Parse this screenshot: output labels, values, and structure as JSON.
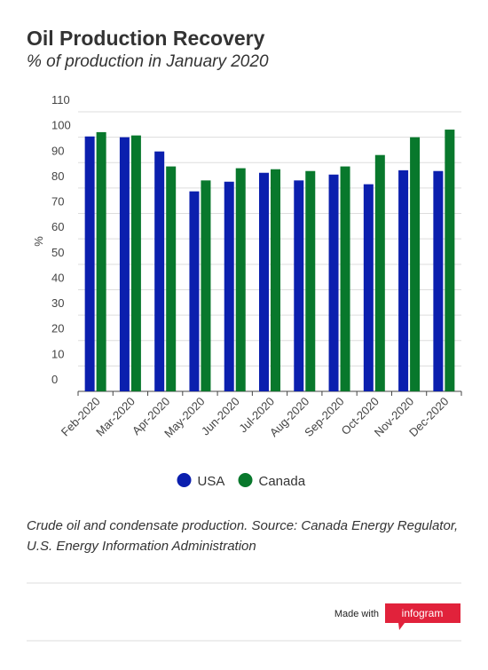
{
  "chart_data": {
    "type": "bar",
    "title": "Oil Production Recovery",
    "subtitle": "% of production in January 2020",
    "y_label": "%",
    "categories": [
      "Feb-2020",
      "Mar-2020",
      "Apr-2020",
      "May-2020",
      "Jun-2020",
      "Jul-2020",
      "Aug-2020",
      "Sep-2020",
      "Oct-2020",
      "Nov-2020",
      "Dec-2020"
    ],
    "series": [
      {
        "name": "USA",
        "color": "#0b1fae",
        "values": [
          100.3,
          100,
          94.4,
          78.7,
          82.5,
          86,
          83,
          85.3,
          81.5,
          87,
          86.7
        ]
      },
      {
        "name": "Canada",
        "color": "#08782c",
        "values": [
          102,
          100.7,
          88.5,
          83,
          87.8,
          87.4,
          86.7,
          88.5,
          93,
          100,
          103
        ]
      }
    ],
    "ylim": [
      0,
      110
    ],
    "yticks": [
      0,
      10,
      20,
      30,
      40,
      50,
      60,
      70,
      80,
      90,
      100,
      110
    ],
    "grid": true,
    "legend": "bottom"
  },
  "note": "Crude oil and condensate production. Source: Canada Energy Regulator, U.S. Energy Information Administration",
  "footer": {
    "made_with": "Made with",
    "brand": "infogram"
  }
}
